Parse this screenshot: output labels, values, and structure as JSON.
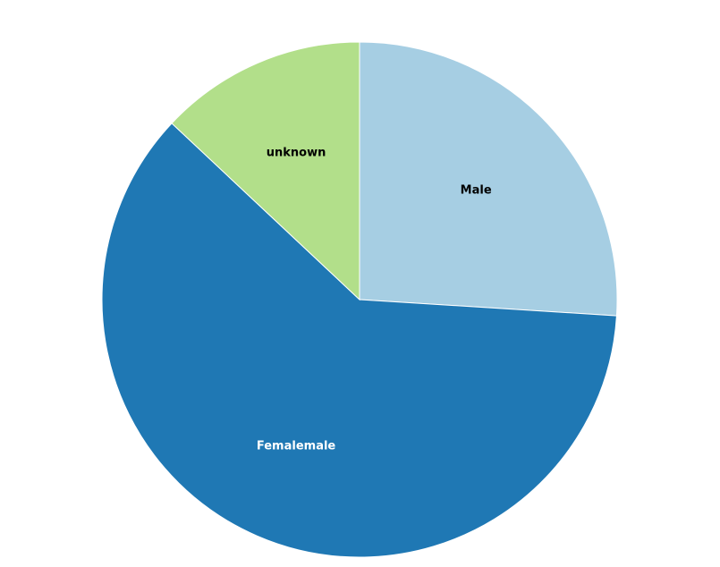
{
  "chart_data": {
    "type": "pie",
    "slices": [
      {
        "label": "Male",
        "value": 26.0,
        "color": "#a6cee3",
        "label_color": "#000000"
      },
      {
        "label": "Femalemale",
        "value": 61.0,
        "color": "#1f78b4",
        "label_color": "#ffffff"
      },
      {
        "label": "unknown",
        "value": 13.0,
        "color": "#b2df8a",
        "label_color": "#000000"
      }
    ],
    "start_angle": "top",
    "direction": "clockwise",
    "legend": "none"
  }
}
